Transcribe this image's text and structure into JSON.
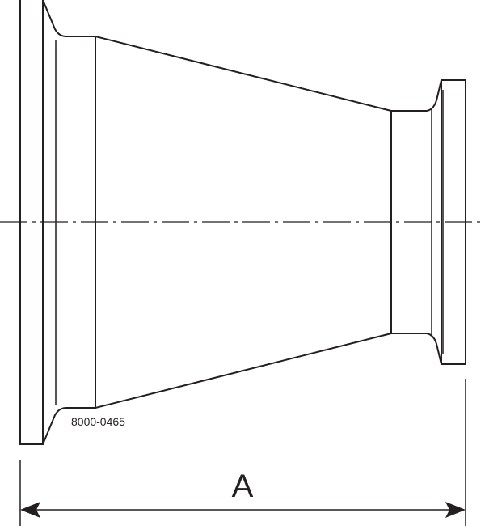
{
  "drawing": {
    "part_number": "8000-0465",
    "dimension_label": "A",
    "line_color": "#231f20"
  }
}
